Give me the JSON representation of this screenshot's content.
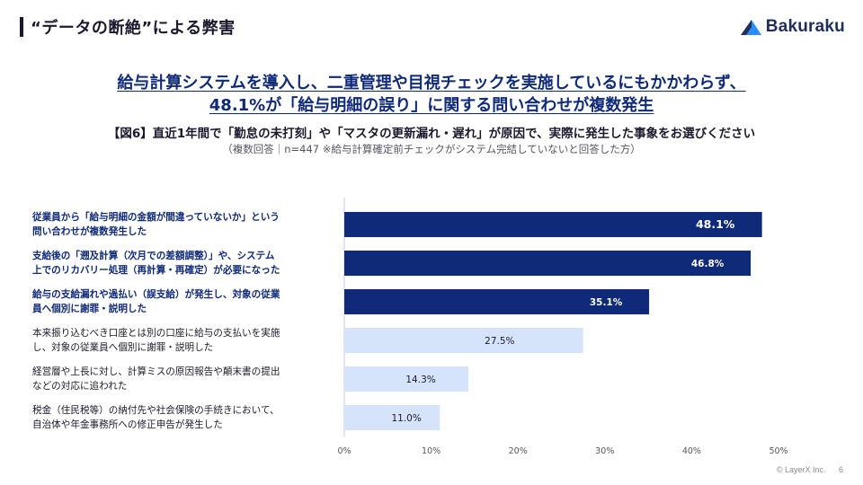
{
  "header": {
    "title": "“データの断絶”による弊害",
    "logo_text": "Bakuraku",
    "logo_icon": "bakuraku-mountain-icon"
  },
  "headline": {
    "line1": "給与計算システムを導入し、二重管理や目視チェックを実施しているにもかかわらず、",
    "line2": "48.1%が「給与明細の誤り」に関する問い合わせが複数発生"
  },
  "figure": {
    "title": "【図6】直近1年間で「勤怠の未打刻」や「マスタの更新漏れ・遅れ」が原因で、実際に発生した事象をお選びください",
    "note": "（複数回答｜n=447 ※給与計算確定前チェックがシステム完結していないと回答した方）"
  },
  "chart_data": {
    "type": "bar",
    "orientation": "horizontal",
    "categories": [
      "従業員から「給与明細の金額が間違っていないか」という問い合わせが複数発生した",
      "支給後の「遡及計算（次月での差額調整）」や、システム上でのリカバリー処理（再計算・再確定）が必要になった",
      "給与の支給漏れや過払い（誤支給）が発生し、対象の従業員へ個別に謝罪・説明した",
      "本来振り込むべき口座とは別の口座に給与の支払いを実施し、対象の従業員へ個別に謝罪・説明した",
      "経営層や上長に対し、計算ミスの原因報告や顛末書の提出などの対応に追われた",
      "税金（住民税等）の納付先や社会保険の手続きにおいて、自治体や年金事務所への修正申告が発生した"
    ],
    "category_lines": [
      [
        "従業員から「給与明細の金額が間違っていないか」という",
        "問い合わせが複数発生した"
      ],
      [
        "支給後の「遡及計算（次月での差額調整）」や、システム",
        "上でのリカバリー処理（再計算・再確定）が必要になった"
      ],
      [
        "給与の支給漏れや過払い（誤支給）が発生し、対象の従業",
        "員へ個別に謝罪・説明した"
      ],
      [
        "本来振り込むべき口座とは別の口座に給与の支払いを実施",
        "し、対象の従業員へ個別に謝罪・説明した"
      ],
      [
        "経営層や上長に対し、計算ミスの原因報告や顛末書の提出",
        "などの対応に追われた"
      ],
      [
        "税金（住民税等）の納付先や社会保険の手続きにおいて、",
        "自治体や年金事務所への修正申告が発生した"
      ]
    ],
    "values": [
      48.1,
      46.8,
      35.1,
      27.5,
      14.3,
      11.0
    ],
    "value_labels": [
      "48.1%",
      "46.8%",
      "35.1%",
      "27.5%",
      "14.3%",
      "11.0%"
    ],
    "xlim": [
      0,
      50
    ],
    "xticks": [
      "0%",
      "10%",
      "20%",
      "30%",
      "40%",
      "50%"
    ],
    "highlight_count": 3,
    "colors": {
      "highlight": "#0f2a78",
      "normal": "#d6e4fb",
      "axis": "#c8cbd3",
      "highlight_text": "#ffffff",
      "normal_text": "#1a1a2e",
      "tick_text": "#555566"
    },
    "grid": false
  },
  "footer": {
    "copyright": "© LayerX Inc.",
    "page": "6"
  }
}
